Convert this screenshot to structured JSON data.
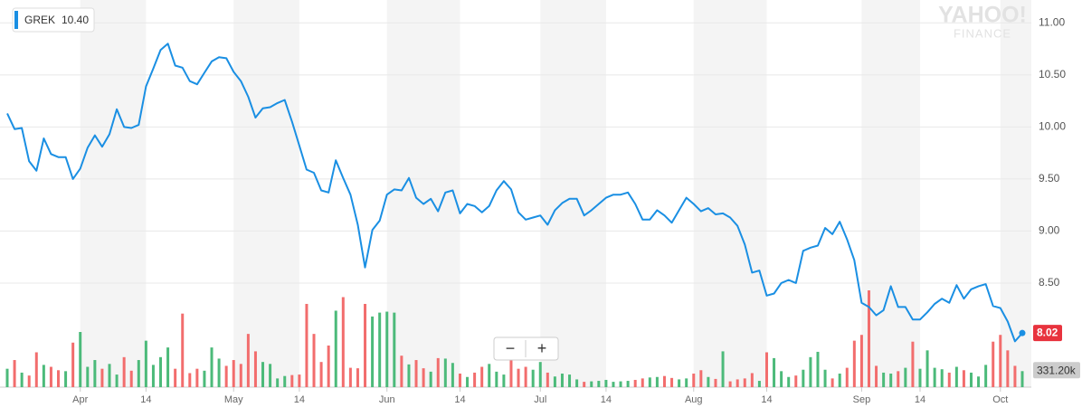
{
  "chart_data": {
    "type": "line",
    "logo": [
      "YAHOO!",
      "FINANCE"
    ],
    "legend_price": {
      "value": 10.4,
      "label": "10.40"
    },
    "controls": [
      "−",
      "+"
    ],
    "categories": [
      null,
      null,
      null,
      null,
      null,
      null,
      null,
      null,
      null,
      null,
      "Apr",
      null,
      null,
      null,
      null,
      null,
      null,
      null,
      null,
      "14",
      null,
      null,
      null,
      null,
      null,
      null,
      null,
      null,
      null,
      null,
      null,
      "May",
      null,
      null,
      null,
      null,
      null,
      null,
      null,
      null,
      "14",
      null,
      null,
      null,
      null,
      null,
      null,
      null,
      null,
      null,
      null,
      null,
      "Jun",
      null,
      null,
      null,
      null,
      null,
      null,
      null,
      null,
      null,
      "14",
      null,
      null,
      null,
      null,
      null,
      null,
      null,
      null,
      null,
      null,
      "Jul",
      null,
      null,
      null,
      null,
      null,
      null,
      null,
      null,
      "14",
      null,
      null,
      null,
      null,
      null,
      null,
      null,
      null,
      null,
      null,
      null,
      "Aug",
      null,
      null,
      null,
      null,
      null,
      null,
      null,
      null,
      null,
      "14",
      null,
      null,
      null,
      null,
      null,
      null,
      null,
      null,
      null,
      null,
      null,
      null,
      "Sep",
      null,
      null,
      null,
      null,
      null,
      null,
      null,
      "14",
      null,
      null,
      null,
      null,
      null,
      null,
      null,
      null,
      null,
      null,
      "Oct",
      null,
      null,
      null
    ],
    "series": [
      {
        "name": "GREK",
        "color": "#1a8fe3",
        "values": [
          10.13,
          9.98,
          9.99,
          9.67,
          9.58,
          9.89,
          9.74,
          9.71,
          9.71,
          9.5,
          9.6,
          9.8,
          9.92,
          9.81,
          9.93,
          10.17,
          10.0,
          9.99,
          10.02,
          10.39,
          10.56,
          10.74,
          10.8,
          10.59,
          10.57,
          10.44,
          10.41,
          10.52,
          10.63,
          10.67,
          10.66,
          10.53,
          10.44,
          10.29,
          10.09,
          10.18,
          10.19,
          10.23,
          10.26,
          10.05,
          9.82,
          9.59,
          9.56,
          9.39,
          9.37,
          9.68,
          9.51,
          9.35,
          9.06,
          8.65,
          9.01,
          9.1,
          9.35,
          9.4,
          9.39,
          9.51,
          9.32,
          9.26,
          9.31,
          9.19,
          9.37,
          9.39,
          9.17,
          9.26,
          9.24,
          9.18,
          9.24,
          9.39,
          9.48,
          9.4,
          9.18,
          9.11,
          9.13,
          9.15,
          9.06,
          9.2,
          9.27,
          9.31,
          9.31,
          9.15,
          9.2,
          9.26,
          9.32,
          9.35,
          9.35,
          9.37,
          9.26,
          9.11,
          9.11,
          9.2,
          9.15,
          9.08,
          9.2,
          9.32,
          9.26,
          9.19,
          9.22,
          9.16,
          9.17,
          9.13,
          9.05,
          8.87,
          8.6,
          8.62,
          8.38,
          8.4,
          8.5,
          8.53,
          8.5,
          8.81,
          8.84,
          8.86,
          9.03,
          8.97,
          9.09,
          8.92,
          8.72,
          8.31,
          8.27,
          8.19,
          8.24,
          8.47,
          8.27,
          8.27,
          8.15,
          8.15,
          8.22,
          8.3,
          8.35,
          8.31,
          8.48,
          8.35,
          8.44,
          8.47,
          8.49,
          8.28,
          8.26,
          8.13,
          7.94,
          8.02
        ],
        "value_labels": [
          null,
          null,
          null,
          null,
          null,
          null,
          null,
          null,
          null,
          null,
          null,
          null,
          null,
          null,
          null,
          null,
          null,
          null,
          null,
          null,
          null,
          null,
          null,
          null,
          null,
          null,
          null,
          null,
          null,
          null,
          null,
          null,
          null,
          null,
          null,
          null,
          null,
          null,
          null,
          null,
          null,
          null,
          null,
          null,
          null,
          null,
          null,
          null,
          null,
          null,
          null,
          null,
          null,
          null,
          null,
          null,
          null,
          null,
          null,
          null,
          null,
          null,
          null,
          null,
          null,
          null,
          null,
          null,
          null,
          null,
          null,
          null,
          null,
          null,
          null,
          null,
          null,
          null,
          null,
          null,
          null,
          null,
          null,
          null,
          null,
          null,
          null,
          null,
          null,
          null,
          null,
          null,
          null,
          null,
          null,
          null,
          null,
          null,
          null,
          null,
          null,
          null,
          null,
          null,
          null,
          null,
          null,
          null,
          null,
          null,
          null,
          null,
          null,
          null,
          null,
          null,
          null,
          null,
          null,
          null,
          null,
          null,
          null,
          null,
          null,
          null,
          null,
          null,
          null,
          null,
          null,
          null,
          null,
          null,
          null,
          null,
          null,
          null,
          null,
          "8.02"
        ]
      }
    ],
    "volume": {
      "up_color": "#4cba7a",
      "down_color": "#f26d6d",
      "vlim": [
        0,
        8000000
      ],
      "values": [
        380000,
        560000,
        300000,
        240000,
        720000,
        460000,
        420000,
        350000,
        330000,
        920000,
        1140000,
        420000,
        560000,
        380000,
        480000,
        260000,
        620000,
        340000,
        560000,
        960000,
        460000,
        620000,
        820000,
        380000,
        1520000,
        290000,
        380000,
        340000,
        820000,
        590000,
        440000,
        560000,
        480000,
        1100000,
        740000,
        520000,
        480000,
        180000,
        230000,
        250000,
        260000,
        1720000,
        1100000,
        520000,
        860000,
        1580000,
        1860000,
        400000,
        390000,
        1720000,
        1460000,
        1540000,
        1560000,
        1540000,
        650000,
        470000,
        560000,
        390000,
        320000,
        600000,
        590000,
        500000,
        280000,
        210000,
        300000,
        420000,
        480000,
        320000,
        260000,
        600000,
        380000,
        420000,
        360000,
        520000,
        300000,
        220000,
        280000,
        260000,
        160000,
        110000,
        120000,
        130000,
        150000,
        110000,
        120000,
        130000,
        150000,
        180000,
        200000,
        210000,
        230000,
        190000,
        160000,
        180000,
        280000,
        350000,
        210000,
        170000,
        740000,
        120000,
        160000,
        180000,
        290000,
        130000,
        720000,
        600000,
        330000,
        210000,
        240000,
        360000,
        620000,
        730000,
        360000,
        180000,
        280000,
        400000,
        960000,
        1080000,
        2000000,
        440000,
        300000,
        280000,
        330000,
        400000,
        940000,
        380000,
        760000,
        400000,
        370000,
        300000,
        420000,
        350000,
        300000,
        220000,
        460000,
        940000,
        1080000,
        760000,
        440000,
        331200
      ],
      "value_labels": [
        null,
        null,
        null,
        null,
        null,
        null,
        null,
        null,
        null,
        null,
        null,
        null,
        null,
        null,
        null,
        null,
        null,
        null,
        null,
        null,
        null,
        null,
        null,
        null,
        null,
        null,
        null,
        null,
        null,
        null,
        null,
        null,
        null,
        null,
        null,
        null,
        null,
        null,
        null,
        null,
        null,
        null,
        null,
        null,
        null,
        null,
        null,
        null,
        null,
        null,
        null,
        null,
        null,
        null,
        null,
        null,
        null,
        null,
        null,
        null,
        null,
        null,
        null,
        null,
        null,
        null,
        null,
        null,
        null,
        null,
        null,
        null,
        null,
        null,
        null,
        null,
        null,
        null,
        null,
        null,
        null,
        null,
        null,
        null,
        null,
        null,
        null,
        null,
        null,
        null,
        null,
        null,
        null,
        null,
        null,
        null,
        null,
        null,
        null,
        null,
        null,
        null,
        null,
        null,
        null,
        null,
        null,
        null,
        null,
        null,
        null,
        null,
        null,
        null,
        null,
        null,
        null,
        null,
        null,
        null,
        null,
        null,
        null,
        null,
        null,
        null,
        null,
        null,
        null,
        null,
        null,
        null,
        null,
        null,
        null,
        null,
        null,
        null,
        null,
        "331.20k"
      ]
    },
    "ylim": [
      7.5,
      11.22
    ],
    "yticks": [
      {
        "value": 8.5,
        "label": "8.50"
      },
      {
        "value": 9,
        "label": "9.00"
      },
      {
        "value": 9.5,
        "label": "9.50"
      },
      {
        "value": 10,
        "label": "10.00"
      },
      {
        "value": 10.5,
        "label": "10.50"
      },
      {
        "value": 11,
        "label": "11.00"
      }
    ],
    "grid": true
  }
}
